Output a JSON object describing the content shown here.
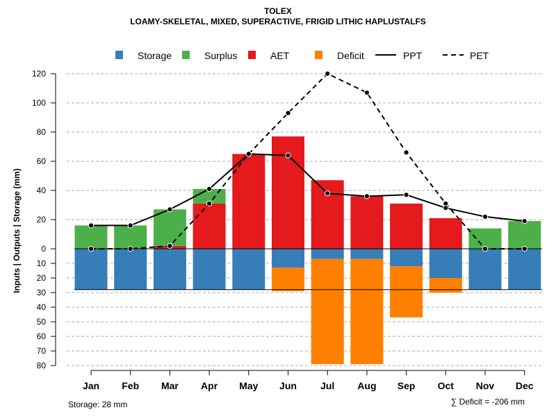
{
  "title": "TOLEX",
  "subtitle": "LOAMY-SKELETAL, MIXED, SUPERACTIVE, FRIGID LITHIC HAPLUSTALFS",
  "footer": {
    "storage_note": "Storage: 28 mm",
    "deficit_note": "∑ Deficit = -206 mm"
  },
  "colors": {
    "storage": "#377EB8",
    "surplus": "#4DAF4A",
    "aet": "#E41A1C",
    "deficit": "#FF7F00",
    "grid": "#aaaaaa"
  },
  "chart_data": {
    "type": "bar",
    "title": "TOLEX",
    "subtitle": "LOAMY-SKELETAL, MIXED, SUPERACTIVE, FRIGID LITHIC HAPLUSTALFS",
    "ylabel": "Inputs | Outputs | Storage    (mm)",
    "categories": [
      "Jan",
      "Feb",
      "Mar",
      "Apr",
      "May",
      "Jun",
      "Jul",
      "Aug",
      "Sep",
      "Oct",
      "Nov",
      "Dec"
    ],
    "ylim_top": [
      0,
      120
    ],
    "ylim_bottom": [
      0,
      80
    ],
    "yticks_top": [
      0,
      20,
      40,
      60,
      80,
      100,
      120
    ],
    "yticks_bottom": [
      10,
      20,
      30,
      40,
      50,
      60,
      70,
      80
    ],
    "storage_capacity": 28,
    "legend": [
      "Storage",
      "Surplus",
      "AET",
      "Deficit",
      "PPT",
      "PET"
    ],
    "legend_position": "top",
    "series": [
      {
        "name": "AET",
        "kind": "bar-up",
        "values": [
          0,
          0,
          2,
          31,
          65,
          77,
          47,
          36,
          31,
          21,
          0,
          0
        ]
      },
      {
        "name": "Surplus",
        "kind": "bar-up-stacked",
        "values": [
          16,
          16,
          25,
          10,
          0,
          0,
          0,
          0,
          0,
          0,
          14,
          19
        ]
      },
      {
        "name": "Storage",
        "kind": "bar-down",
        "values": [
          28,
          28,
          28,
          28,
          28,
          13,
          7,
          7,
          12,
          20,
          28,
          28
        ]
      },
      {
        "name": "Deficit",
        "kind": "bar-down-stacked",
        "values": [
          0,
          0,
          0,
          0,
          0,
          16,
          72,
          72,
          35,
          10,
          0,
          0
        ]
      },
      {
        "name": "PPT",
        "kind": "line-solid",
        "values": [
          16,
          16,
          27,
          41,
          65,
          64,
          38,
          36,
          37,
          28,
          22,
          19
        ]
      },
      {
        "name": "PET",
        "kind": "line-dashed",
        "values": [
          0,
          0,
          2,
          31,
          65,
          93,
          120,
          107,
          66,
          31,
          0,
          0
        ]
      }
    ]
  }
}
